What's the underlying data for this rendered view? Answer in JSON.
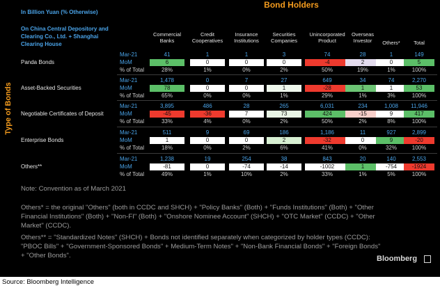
{
  "header": {
    "title": "Bond Holders",
    "unit": "In Billion Yuan (% Otherwise)",
    "scope": "On China Central Depository and Clearing Co., Ltd. + Shanghai Clearing House",
    "side_title": "Type of Bonds"
  },
  "columns": [
    "Commercial Banks",
    "Credit Cooperatives",
    "Insurance Institutions",
    "Securities Companies",
    "Unincorporated Product",
    "Overseas Investor",
    "Others*",
    "Total"
  ],
  "row_labels": [
    "Mar-21",
    "MoM",
    "% of Total"
  ],
  "rows": [
    {
      "name": "Panda Bonds",
      "mar21": [
        "41",
        "1",
        "1",
        "3",
        "74",
        "28",
        "1",
        "149"
      ],
      "mom": [
        6,
        0,
        0,
        0,
        -4,
        2,
        0,
        5
      ],
      "mom_colors": [
        "#5cbf68",
        "#ffffff",
        "#ffffff",
        "#ffffff",
        "#ee3a2e",
        "#e4dcee",
        "#ffffff",
        "#5cbf68"
      ],
      "pct": [
        "28%",
        "1%",
        "0%",
        "2%",
        "50%",
        "19%",
        "1%",
        "100%"
      ]
    },
    {
      "name": "Asset-Backed Securities",
      "mar21": [
        "1,478",
        "0",
        "7",
        "27",
        "649",
        "34",
        "74",
        "2,270"
      ],
      "mom": [
        78,
        0,
        0,
        1,
        -28,
        1,
        1,
        53
      ],
      "mom_colors": [
        "#5cbf68",
        "#ffffff",
        "#ffffff",
        "#eef7ec",
        "#ee3a2e",
        "#6cc474",
        "#ffffff",
        "#5cbf68"
      ],
      "pct": [
        "65%",
        "0%",
        "0%",
        "1%",
        "29%",
        "1%",
        "3%",
        "100%"
      ]
    },
    {
      "name": "Negotiable Certificates of Deposit",
      "mar21": [
        "3,895",
        "486",
        "28",
        "265",
        "6,031",
        "234",
        "1,008",
        "11,946"
      ],
      "mom": [
        -45,
        -36,
        7,
        73,
        424,
        -15,
        9,
        417
      ],
      "mom_colors": [
        "#ee3a2e",
        "#ee3a2e",
        "#ffffff",
        "#e9f5e6",
        "#5cbf68",
        "#f8cfca",
        "#ffffff",
        "#5cbf68"
      ],
      "pct": [
        "33%",
        "4%",
        "0%",
        "2%",
        "50%",
        "2%",
        "8%",
        "100%"
      ]
    },
    {
      "name": "Enterprise Bonds",
      "mar21": [
        "511",
        "9",
        "69",
        "186",
        "1,186",
        "11",
        "927",
        "2,899"
      ],
      "mom": [
        1,
        0,
        0,
        2,
        -32,
        0,
        9,
        -20
      ],
      "mom_colors": [
        "#ffffff",
        "#ffffff",
        "#ffffff",
        "#d7efd2",
        "#ee3a2e",
        "#ffffff",
        "#5cbf68",
        "#ee3a2e"
      ],
      "pct": [
        "18%",
        "0%",
        "2%",
        "6%",
        "41%",
        "0%",
        "32%",
        "100%"
      ]
    },
    {
      "name": "Others**",
      "mar21": [
        "1,238",
        "19",
        "254",
        "38",
        "843",
        "20",
        "140",
        "2,553"
      ],
      "mom": [
        -81,
        0,
        -74,
        -14,
        -1002,
        1,
        -754,
        -1924
      ],
      "mom_colors": [
        "#ffffff",
        "#ffffff",
        "#ffffff",
        "#ffffff",
        "#ffffff",
        "#5cbf68",
        "#ffffff",
        "#ee3a2e"
      ],
      "pct": [
        "49%",
        "1%",
        "10%",
        "2%",
        "33%",
        "1%",
        "5%",
        "100%"
      ]
    }
  ],
  "notes": [
    "Note: Convention as of March 2021",
    "Others* = the original \"Others\" (both in CCDC and SHCH) + \"Policy Banks\" (Both) + \"Funds Institutions\" (Both) + \"Other Financial Institutions\" (Both) + \"Non-FI\" (Both) + \"Onshore Nominee Account\" (SHCH) + \"OTC Market\" (CCDC) + \"Other Market\" (CCDC).",
    "Others** = \"Standardized Notes\" (SHCH) + Bonds not identified separately when categorized by holder types (CCDC): \"PBOC Bills\" + \"Government-Sponsored Bonds\" +  Medium-Term Notes\" + \"Non-Bank Financial Bonds\" + \"Foreign Bonds\" + \"Other Bonds\"."
  ],
  "brand": "Bloomberg",
  "source": "Source: Bloomberg Intelligence"
}
